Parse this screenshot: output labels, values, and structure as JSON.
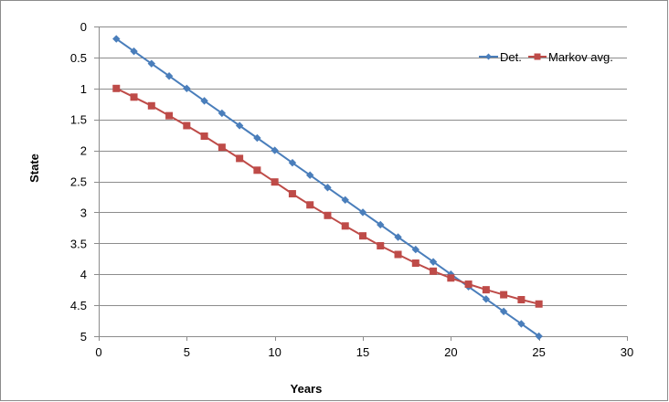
{
  "chart_data": {
    "type": "line",
    "title": "",
    "xlabel": "Years",
    "ylabel": "State",
    "xlim": [
      0,
      30
    ],
    "ylim": [
      0,
      5
    ],
    "y_reversed": true,
    "x_ticks": [
      0,
      5,
      10,
      15,
      20,
      25,
      30
    ],
    "y_ticks": [
      0,
      0.5,
      1,
      1.5,
      2,
      2.5,
      3,
      3.5,
      4,
      4.5,
      5
    ],
    "grid": "horizontal",
    "legend_position": "top-right",
    "x": [
      1,
      2,
      3,
      4,
      5,
      6,
      7,
      8,
      9,
      10,
      11,
      12,
      13,
      14,
      15,
      16,
      17,
      18,
      19,
      20,
      21,
      22,
      23,
      24,
      25
    ],
    "series": [
      {
        "name": "Det.",
        "color": "#4a7ebb",
        "marker": "diamond",
        "values": [
          0.2,
          0.4,
          0.6,
          0.8,
          1.0,
          1.2,
          1.4,
          1.6,
          1.8,
          2.0,
          2.2,
          2.4,
          2.6,
          2.8,
          3.0,
          3.2,
          3.4,
          3.6,
          3.8,
          4.0,
          4.2,
          4.4,
          4.6,
          4.8,
          5.0
        ]
      },
      {
        "name": "Markov avg.",
        "color": "#be4b48",
        "marker": "square",
        "values": [
          1.0,
          1.14,
          1.28,
          1.44,
          1.6,
          1.77,
          1.95,
          2.13,
          2.32,
          2.51,
          2.7,
          2.88,
          3.05,
          3.22,
          3.38,
          3.54,
          3.68,
          3.82,
          3.95,
          4.06,
          4.16,
          4.25,
          4.33,
          4.41,
          4.48
        ]
      }
    ]
  }
}
